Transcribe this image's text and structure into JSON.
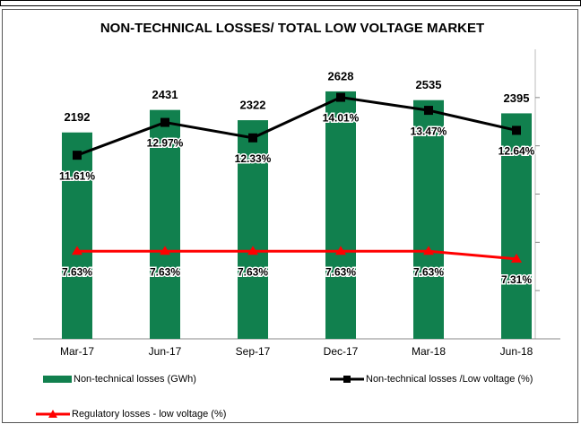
{
  "chart_data": {
    "type": "bar-line",
    "title": "NON-TECHNICAL LOSSES/ TOTAL LOW VOLTAGE MARKET",
    "categories": [
      "Mar-17",
      "Jun-17",
      "Sep-17",
      "Dec-17",
      "Mar-18",
      "Jun-18"
    ],
    "series": [
      {
        "name": "Non-technical losses (GWh)",
        "type": "bar",
        "color": "#11804e",
        "values": [
          2192,
          2431,
          2322,
          2628,
          2535,
          2395
        ]
      },
      {
        "name": "Non-technical losses /Low voltage (%)",
        "type": "line",
        "axis": "y2",
        "color": "#000000",
        "marker": "square",
        "values": [
          11.61,
          12.97,
          12.33,
          14.01,
          13.47,
          12.64
        ],
        "value_labels": [
          "11.61%",
          "12.97%",
          "12.33%",
          "14.01%",
          "13.47%",
          "12.64%"
        ]
      },
      {
        "name": "Regulatory losses - low voltage (%)",
        "type": "line",
        "axis": "y2",
        "color": "#ff0000",
        "marker": "triangle",
        "values": [
          7.63,
          7.63,
          7.63,
          7.63,
          7.63,
          7.31
        ],
        "value_labels": [
          "7.63%",
          "7.63%",
          "7.63%",
          "7.63%",
          "7.63%",
          "7.31%"
        ]
      }
    ],
    "ylim": [
      0,
      3075
    ],
    "y2lim": [
      4,
      16
    ],
    "y2ticks": [
      6,
      8,
      10,
      12,
      14
    ]
  }
}
